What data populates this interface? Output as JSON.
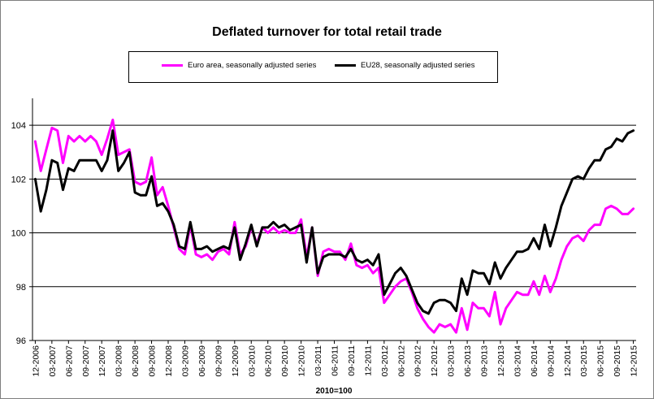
{
  "chart_data": {
    "type": "line",
    "title": "Deflated turnover for total retail trade",
    "xlabel": "2010=100",
    "ylabel": "",
    "ylim": [
      96,
      105
    ],
    "yticks": [
      96,
      98,
      100,
      102,
      104
    ],
    "grid": "horizontal",
    "legend_position": "top",
    "x_start": "12-2006",
    "x_tick_labels": [
      "12-2006",
      "03-2007",
      "06-2007",
      "09-2007",
      "12-2007",
      "03-2008",
      "06-2008",
      "09-2008",
      "12-2008",
      "03-2009",
      "06-2009",
      "09-2009",
      "12-2009",
      "03-2010",
      "06-2010",
      "09-2010",
      "12-2010",
      "03-2011",
      "06-2011",
      "09-2011",
      "12-2011",
      "03-2012",
      "06-2012",
      "09-2012",
      "12-2012",
      "03-2013",
      "06-2013",
      "09-2013",
      "12-2013",
      "03-2014",
      "06-2014",
      "09-2014",
      "12-2014",
      "03-2015",
      "06-2015",
      "09-2015",
      "12-2015"
    ],
    "series": [
      {
        "name": "Euro area, seasonally adjusted series",
        "color": "#ff00ff",
        "values": [
          103.4,
          102.3,
          103.1,
          103.9,
          103.8,
          102.6,
          103.6,
          103.4,
          103.6,
          103.4,
          103.6,
          103.4,
          102.9,
          103.5,
          104.2,
          102.9,
          103.0,
          103.1,
          101.9,
          101.8,
          101.9,
          102.8,
          101.4,
          101.7,
          101.0,
          100.2,
          99.4,
          99.2,
          100.3,
          99.2,
          99.1,
          99.2,
          99.0,
          99.3,
          99.4,
          99.2,
          100.4,
          99.2,
          99.5,
          100.2,
          99.6,
          100.2,
          100.0,
          100.2,
          100.0,
          100.1,
          100.0,
          100.0,
          100.5,
          99.1,
          100.2,
          98.4,
          99.3,
          99.4,
          99.3,
          99.3,
          99.0,
          99.6,
          98.8,
          98.7,
          98.8,
          98.5,
          98.7,
          97.4,
          97.7,
          98.0,
          98.2,
          98.3,
          97.8,
          97.2,
          96.8,
          96.5,
          96.3,
          96.6,
          96.5,
          96.6,
          96.3,
          97.2,
          96.4,
          97.4,
          97.2,
          97.2,
          96.9,
          97.8,
          96.6,
          97.2,
          97.5,
          97.8,
          97.7,
          97.7,
          98.2,
          97.7,
          98.4,
          97.8,
          98.3,
          99.0,
          99.5,
          99.8,
          99.9,
          99.7,
          100.1,
          100.3,
          100.3,
          100.9,
          101.0,
          100.9,
          100.7,
          100.7,
          100.9
        ]
      },
      {
        "name": "EU28, seasonally adjusted series",
        "color": "#000000",
        "values": [
          102.0,
          100.8,
          101.6,
          102.7,
          102.6,
          101.6,
          102.4,
          102.3,
          102.7,
          102.7,
          102.7,
          102.7,
          102.3,
          102.7,
          103.8,
          102.3,
          102.6,
          103.0,
          101.5,
          101.4,
          101.4,
          102.1,
          101.0,
          101.1,
          100.8,
          100.3,
          99.5,
          99.4,
          100.4,
          99.4,
          99.4,
          99.5,
          99.3,
          99.4,
          99.5,
          99.4,
          100.2,
          99.0,
          99.6,
          100.3,
          99.5,
          100.2,
          100.2,
          100.4,
          100.2,
          100.3,
          100.1,
          100.2,
          100.3,
          98.9,
          100.2,
          98.5,
          99.1,
          99.2,
          99.2,
          99.2,
          99.1,
          99.4,
          99.0,
          98.9,
          99.0,
          98.8,
          99.2,
          97.7,
          98.1,
          98.5,
          98.7,
          98.4,
          97.9,
          97.4,
          97.1,
          97.0,
          97.4,
          97.5,
          97.5,
          97.4,
          97.1,
          98.3,
          97.7,
          98.6,
          98.5,
          98.5,
          98.1,
          98.9,
          98.3,
          98.7,
          99.0,
          99.3,
          99.3,
          99.4,
          99.8,
          99.4,
          100.3,
          99.5,
          100.2,
          101.0,
          101.5,
          102.0,
          102.1,
          102.0,
          102.4,
          102.7,
          102.7,
          103.1,
          103.2,
          103.5,
          103.4,
          103.7,
          103.8
        ]
      }
    ]
  }
}
